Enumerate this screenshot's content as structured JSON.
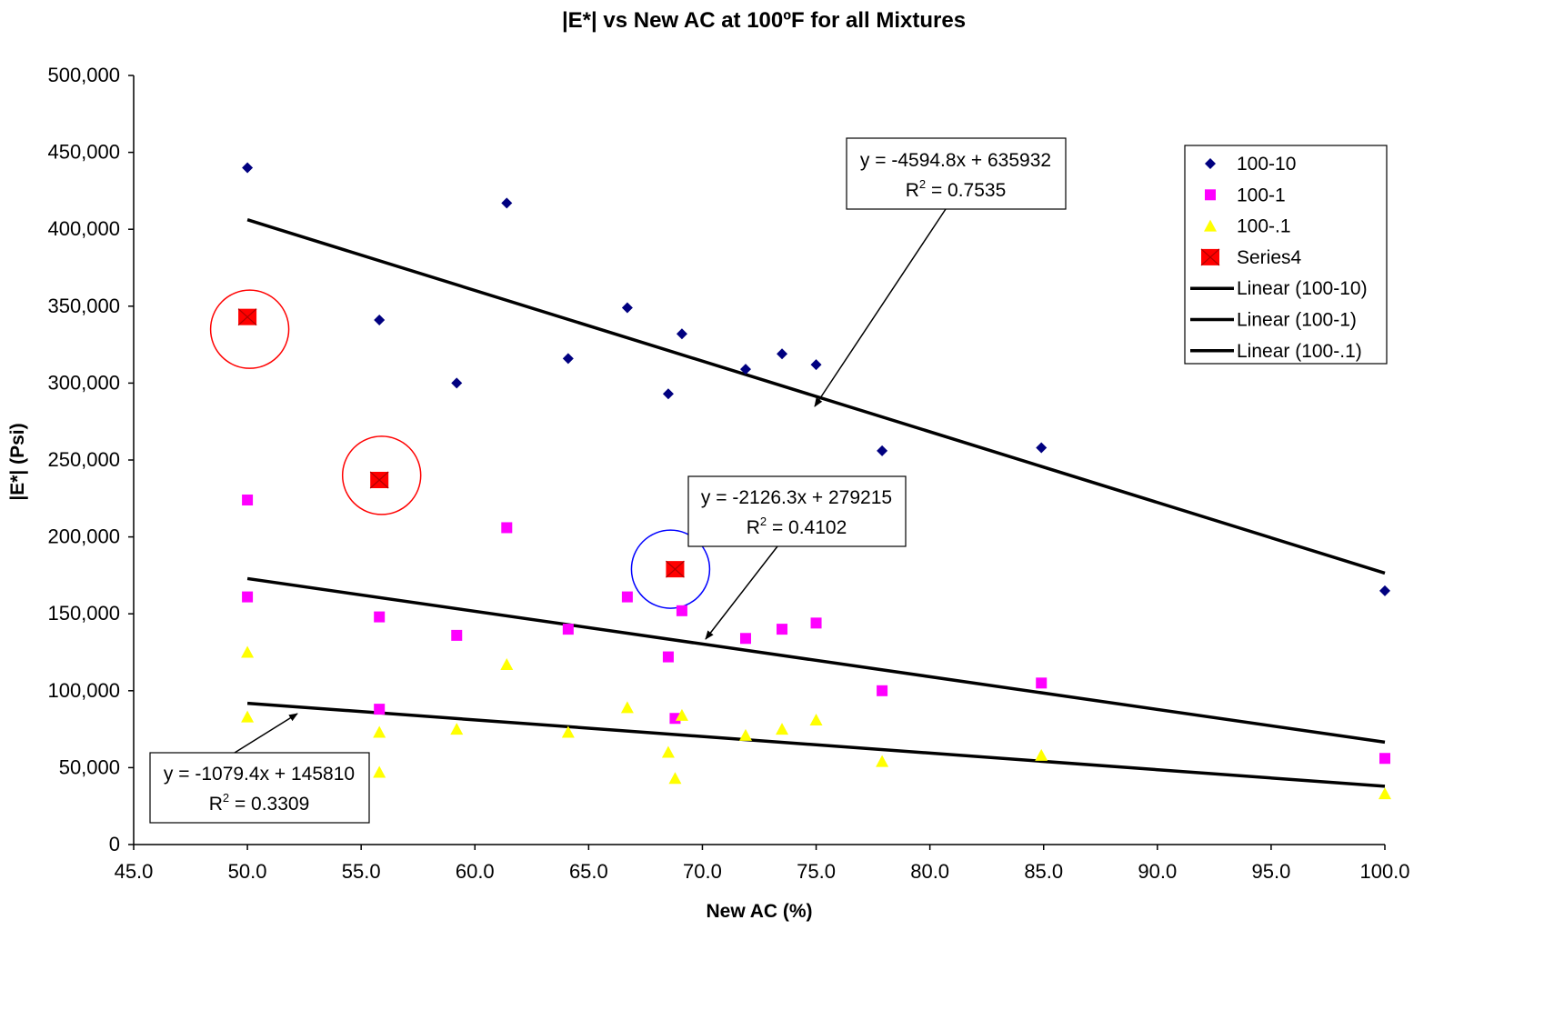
{
  "chart_data": {
    "type": "scatter",
    "title": "|E*| vs New AC at 100ºF for all Mixtures",
    "xlabel": "New AC (%)",
    "ylabel": "|E*| (Psi)",
    "xlim": [
      45.0,
      100.0
    ],
    "ylim": [
      0,
      500000
    ],
    "x_ticks": [
      "45.0",
      "50.0",
      "55.0",
      "60.0",
      "65.0",
      "70.0",
      "75.0",
      "80.0",
      "85.0",
      "90.0",
      "95.0",
      "100.0"
    ],
    "y_ticks": [
      "0",
      "50,000",
      "100,000",
      "150,000",
      "200,000",
      "250,000",
      "300,000",
      "350,000",
      "400,000",
      "450,000",
      "500,000"
    ],
    "grid": false,
    "legend_position": "top-right",
    "series": [
      {
        "name": "100-10",
        "marker": "diamond",
        "color": "#000080",
        "points": [
          [
            50.0,
            440000
          ],
          [
            55.8,
            341000
          ],
          [
            59.2,
            300000
          ],
          [
            61.4,
            417000
          ],
          [
            64.1,
            316000
          ],
          [
            66.7,
            349000
          ],
          [
            68.5,
            293000
          ],
          [
            69.1,
            332000
          ],
          [
            71.9,
            309000
          ],
          [
            73.5,
            319000
          ],
          [
            75.0,
            312000
          ],
          [
            77.9,
            256000
          ],
          [
            84.9,
            258000
          ],
          [
            100.0,
            165000
          ]
        ]
      },
      {
        "name": "100-1",
        "marker": "square",
        "color": "#FF00FF",
        "points": [
          [
            50.0,
            224000
          ],
          [
            50.0,
            161000
          ],
          [
            55.8,
            148000
          ],
          [
            55.8,
            88000
          ],
          [
            59.2,
            136000
          ],
          [
            61.4,
            206000
          ],
          [
            64.1,
            140000
          ],
          [
            66.7,
            161000
          ],
          [
            68.5,
            122000
          ],
          [
            68.8,
            82000
          ],
          [
            69.1,
            152000
          ],
          [
            71.9,
            134000
          ],
          [
            73.5,
            140000
          ],
          [
            75.0,
            144000
          ],
          [
            77.9,
            100000
          ],
          [
            84.9,
            105000
          ],
          [
            100.0,
            56000
          ]
        ]
      },
      {
        "name": "100-.1",
        "marker": "triangle",
        "color": "#FFFF00",
        "points": [
          [
            50.0,
            125000
          ],
          [
            50.0,
            83000
          ],
          [
            55.8,
            73000
          ],
          [
            55.8,
            47000
          ],
          [
            59.2,
            75000
          ],
          [
            61.4,
            117000
          ],
          [
            64.1,
            73000
          ],
          [
            66.7,
            89000
          ],
          [
            68.5,
            60000
          ],
          [
            68.8,
            43000
          ],
          [
            69.1,
            84000
          ],
          [
            71.9,
            71000
          ],
          [
            73.5,
            75000
          ],
          [
            75.0,
            81000
          ],
          [
            77.9,
            54000
          ],
          [
            84.9,
            58000
          ],
          [
            100.0,
            33000
          ]
        ]
      },
      {
        "name": "Series4",
        "marker": "square-large",
        "color": "#FF0000",
        "points": [
          [
            50.0,
            343000
          ],
          [
            55.8,
            237000
          ],
          [
            68.8,
            179000
          ]
        ]
      }
    ],
    "trendlines": [
      {
        "name": "Linear (100-10)",
        "slope": -4594.8,
        "intercept": 635932,
        "x_range": [
          50.0,
          100.0
        ],
        "equation": "y = -4594.8x + 635932",
        "r2_prefix": "R",
        "r2_sup": "2",
        "r2_value": " = 0.7535"
      },
      {
        "name": "Linear (100-1)",
        "slope": -2126.3,
        "intercept": 279215,
        "x_range": [
          50.0,
          100.0
        ],
        "equation": "y = -2126.3x + 279215",
        "r2_prefix": "R",
        "r2_sup": "2",
        "r2_value": " = 0.4102"
      },
      {
        "name": "Linear (100-.1)",
        "slope": -1079.4,
        "intercept": 145810,
        "x_range": [
          50.0,
          100.0
        ],
        "equation": "y = -1079.4x + 145810",
        "r2_prefix": "R",
        "r2_sup": "2",
        "r2_value": " = 0.3309"
      }
    ],
    "highlight_circles": [
      {
        "x": 50.1,
        "y": 335000,
        "color": "#FF0000"
      },
      {
        "x": 55.9,
        "y": 240000,
        "color": "#FF0000"
      },
      {
        "x": 68.6,
        "y": 179000,
        "color": "#0000FF"
      }
    ]
  }
}
